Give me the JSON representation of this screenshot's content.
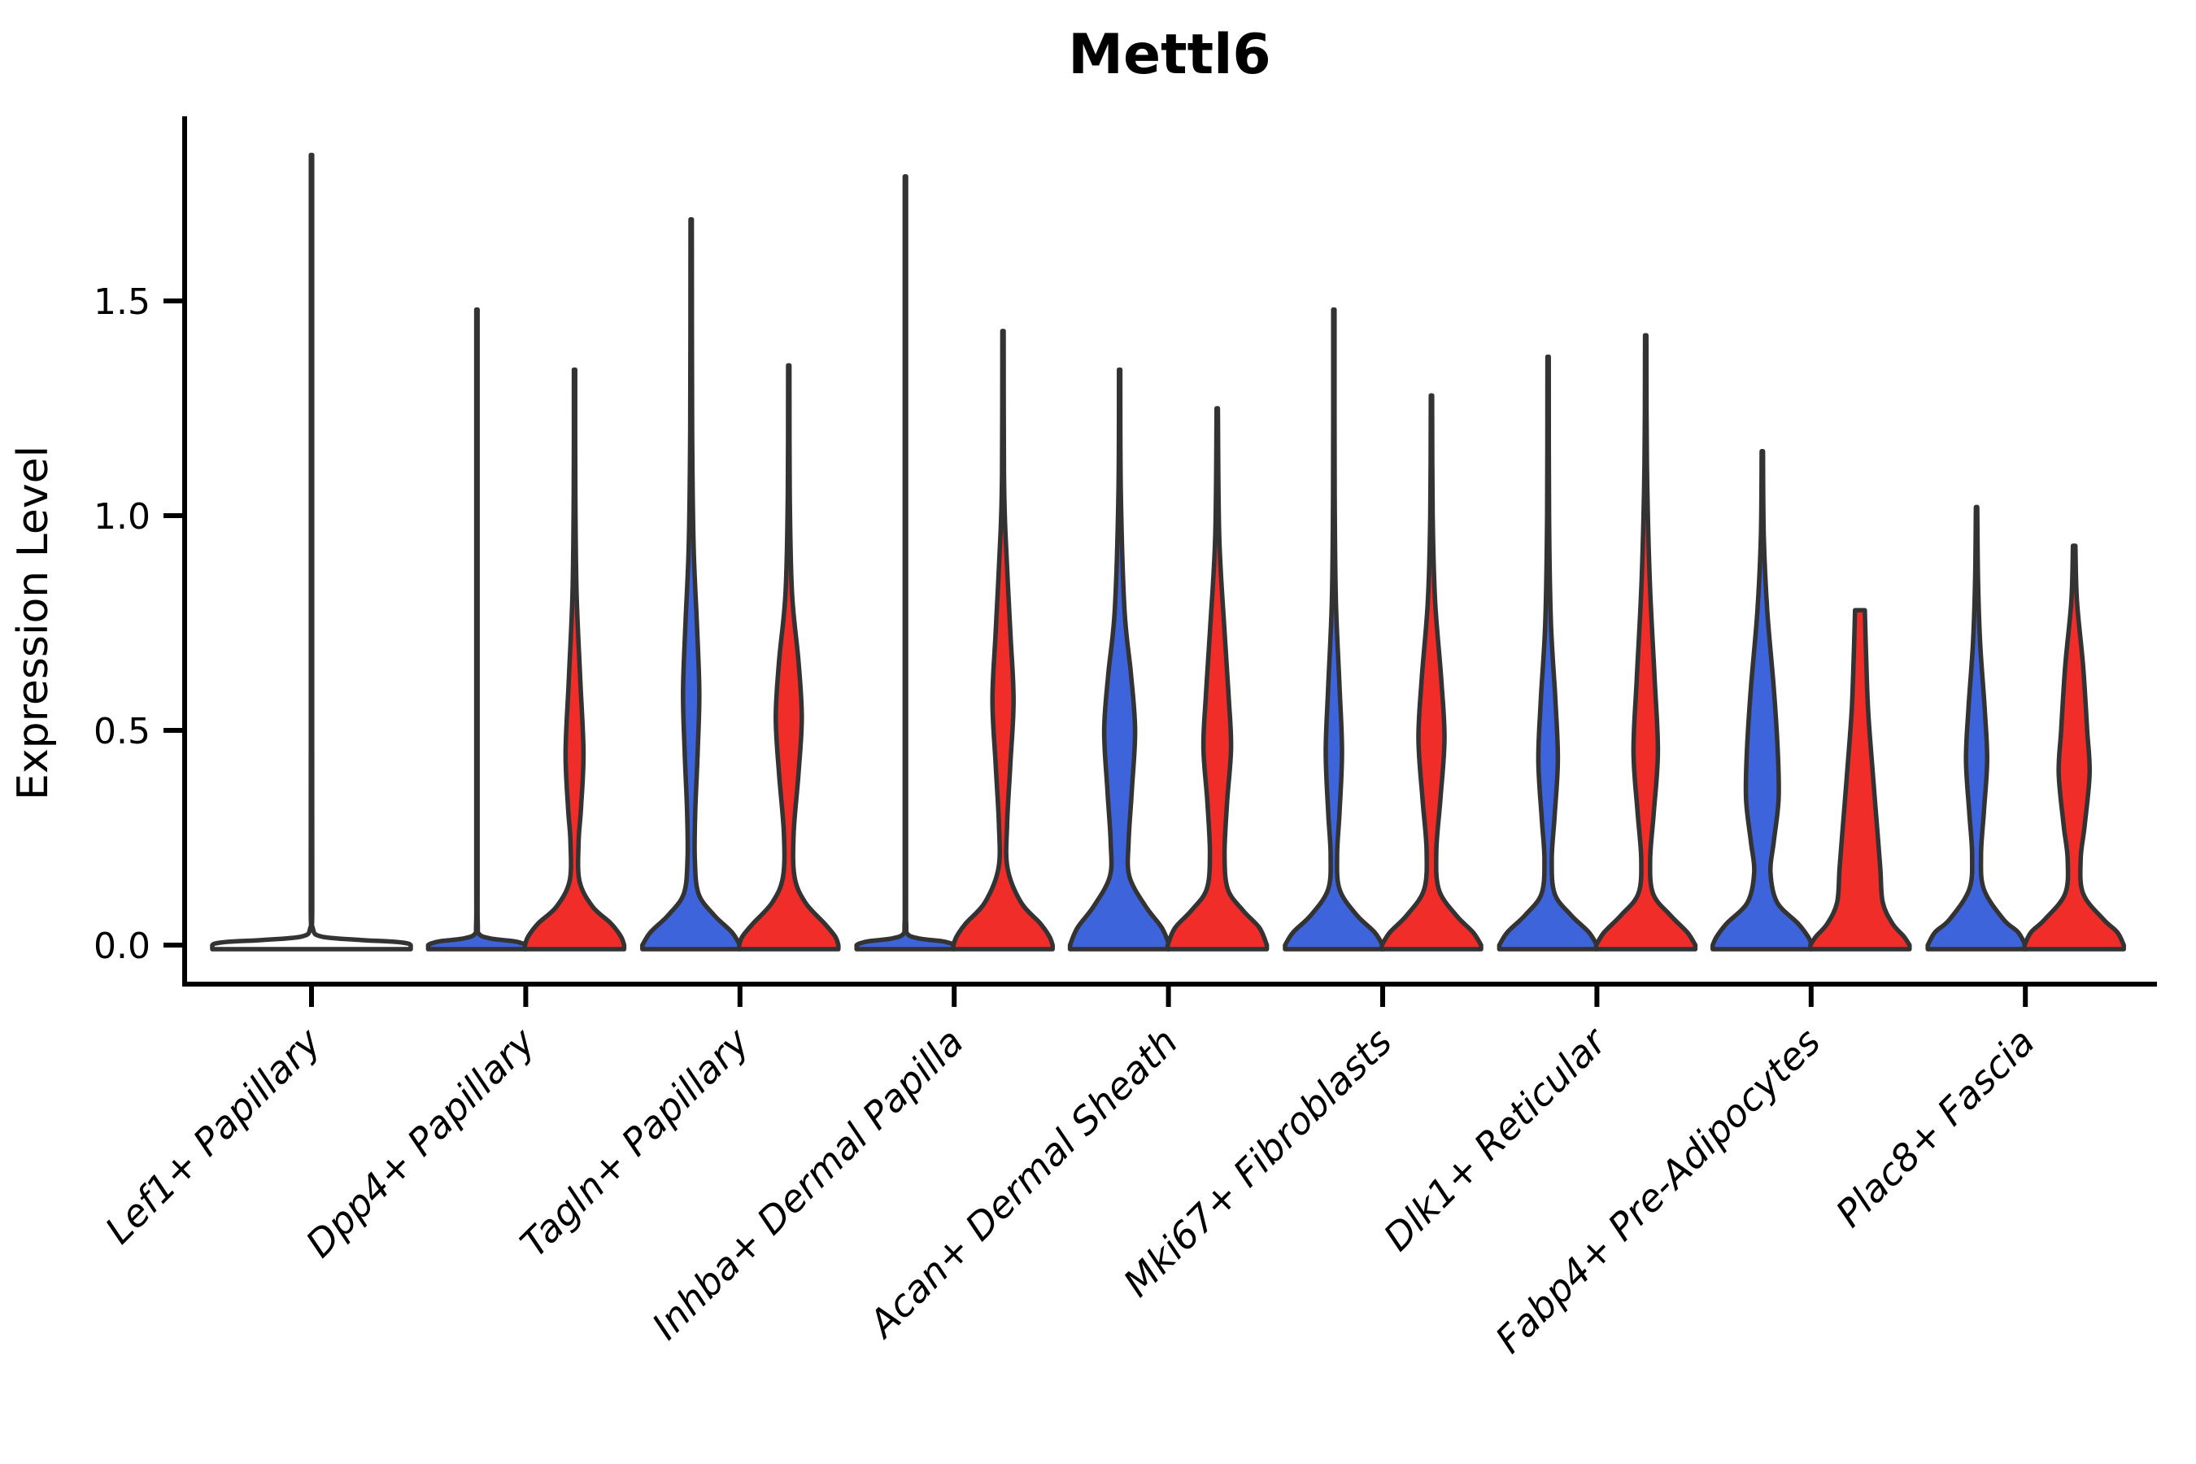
{
  "figure": {
    "title": "Mettl6",
    "ylabel": "Expression Level"
  },
  "colors": {
    "blue": "#3E64DC",
    "red": "#F02D28",
    "outline": "#333333",
    "axis": "#000000"
  },
  "chart_data": {
    "type": "violin",
    "title": "Mettl6",
    "xlabel": "",
    "ylabel": "Expression Level",
    "ylim": [
      -0.06,
      1.93
    ],
    "yticks": [
      "0.0",
      "0.5",
      "1.0",
      "1.5"
    ],
    "ytick_values": [
      0.0,
      0.5,
      1.0,
      1.5
    ],
    "grid": false,
    "legend_position": "none",
    "series": [
      {
        "key": "blue",
        "color": "#3E64DC",
        "position": "left"
      },
      {
        "key": "red",
        "color": "#F02D28",
        "position": "right"
      }
    ],
    "categories": [
      "Lef1+ Papillary",
      "Dpp4+ Papillary",
      "Tagln+ Papillary",
      "Inhba+ Dermal Papilla",
      "Acan+ Dermal Sheath",
      "Mki67+ Fibroblasts",
      "Dlk1+ Reticular",
      "Fabp4+ Pre-Adipocytes",
      "Plac8+ Fascia"
    ],
    "max_expression": {
      "blue": [
        1.84,
        1.48,
        1.69,
        1.79,
        1.34,
        1.48,
        1.37,
        1.15,
        1.02
      ],
      "red": [
        null,
        1.34,
        1.35,
        1.43,
        1.25,
        1.28,
        1.42,
        0.78,
        0.93
      ]
    },
    "note": "Lef1+ Papillary shows one flat full-width violin; Dpp4+ and Inhba+ blue violins are flat lines with tall spikes; most mass sits near 0 with a secondary bulge around 0.4-0.6.",
    "groups": [
      {
        "label": "Lef1+ Papillary",
        "violins": [
          {
            "series": "single",
            "max": 1.84,
            "profile": [
              [
                1.84,
                0.8
              ],
              [
                1.2,
                0.8
              ],
              [
                0.5,
                0.8
              ],
              [
                0.1,
                0.9
              ],
              [
                0.04,
                1.5
              ],
              [
                0.02,
                12
              ],
              [
                0.012,
                60
              ],
              [
                0.008,
                100
              ],
              [
                0.004,
                118
              ],
              [
                0,
                122
              ]
            ]
          }
        ]
      },
      {
        "label": "Dpp4+ Papillary",
        "violins": [
          {
            "series": "blue",
            "max": 1.48,
            "profile": [
              [
                1.48,
                0.8
              ],
              [
                0.6,
                0.8
              ],
              [
                0.15,
                0.8
              ],
              [
                0.05,
                1
              ],
              [
                0.025,
                3
              ],
              [
                0.015,
                18
              ],
              [
                0.009,
                45
              ],
              [
                0.004,
                56
              ],
              [
                0,
                60
              ]
            ]
          },
          {
            "series": "red",
            "max": 1.34,
            "profile": [
              [
                1.34,
                0.8
              ],
              [
                1.05,
                1
              ],
              [
                0.82,
                2.5
              ],
              [
                0.62,
                7
              ],
              [
                0.45,
                11
              ],
              [
                0.32,
                8
              ],
              [
                0.24,
                5
              ],
              [
                0.15,
                6
              ],
              [
                0.09,
                22
              ],
              [
                0.05,
                45
              ],
              [
                0.02,
                57
              ],
              [
                0,
                61
              ]
            ]
          }
        ]
      },
      {
        "label": "Tagln+ Papillary",
        "violins": [
          {
            "series": "blue",
            "max": 1.69,
            "profile": [
              [
                1.69,
                0.8
              ],
              [
                1.2,
                1.2
              ],
              [
                0.93,
                3
              ],
              [
                0.75,
                7
              ],
              [
                0.59,
                10
              ],
              [
                0.45,
                8
              ],
              [
                0.31,
                5
              ],
              [
                0.2,
                4.5
              ],
              [
                0.12,
                9
              ],
              [
                0.07,
                28
              ],
              [
                0.03,
                50
              ],
              [
                0,
                60
              ]
            ]
          },
          {
            "series": "red",
            "max": 1.35,
            "profile": [
              [
                1.35,
                0.8
              ],
              [
                1.05,
                1.2
              ],
              [
                0.82,
                4
              ],
              [
                0.66,
                12
              ],
              [
                0.53,
                16
              ],
              [
                0.4,
                12
              ],
              [
                0.26,
                6
              ],
              [
                0.16,
                7
              ],
              [
                0.1,
                20
              ],
              [
                0.05,
                44
              ],
              [
                0.02,
                57
              ],
              [
                0,
                61
              ]
            ]
          }
        ]
      },
      {
        "label": "Inhba+ Dermal Papilla",
        "violins": [
          {
            "series": "blue",
            "max": 1.79,
            "profile": [
              [
                1.79,
                0.8
              ],
              [
                0.8,
                0.8
              ],
              [
                0.15,
                0.8
              ],
              [
                0.05,
                1
              ],
              [
                0.025,
                3
              ],
              [
                0.015,
                18
              ],
              [
                0.009,
                45
              ],
              [
                0.004,
                56
              ],
              [
                0,
                60
              ]
            ]
          },
          {
            "series": "red",
            "max": 1.43,
            "profile": [
              [
                1.43,
                0.8
              ],
              [
                1.1,
                1.2
              ],
              [
                0.96,
                3
              ],
              [
                0.73,
                9
              ],
              [
                0.57,
                13
              ],
              [
                0.42,
                9
              ],
              [
                0.28,
                5
              ],
              [
                0.18,
                5.5
              ],
              [
                0.1,
                22
              ],
              [
                0.05,
                46
              ],
              [
                0.02,
                57
              ],
              [
                0,
                61
              ]
            ]
          }
        ]
      },
      {
        "label": "Acan+ Dermal Sheath",
        "violins": [
          {
            "series": "blue",
            "max": 1.34,
            "profile": [
              [
                1.34,
                0.8
              ],
              [
                1.05,
                1.5
              ],
              [
                0.78,
                6
              ],
              [
                0.63,
                14
              ],
              [
                0.5,
                19
              ],
              [
                0.36,
                15
              ],
              [
                0.24,
                11
              ],
              [
                0.16,
                12
              ],
              [
                0.09,
                32
              ],
              [
                0.04,
                52
              ],
              [
                0,
                61
              ]
            ]
          },
          {
            "series": "red",
            "max": 1.25,
            "profile": [
              [
                1.25,
                0.8
              ],
              [
                0.95,
                2.5
              ],
              [
                0.73,
                9
              ],
              [
                0.58,
                14
              ],
              [
                0.46,
                17
              ],
              [
                0.33,
                12
              ],
              [
                0.21,
                9
              ],
              [
                0.13,
                13
              ],
              [
                0.08,
                32
              ],
              [
                0.04,
                52
              ],
              [
                0,
                61
              ]
            ]
          }
        ]
      },
      {
        "label": "Mki67+ Fibroblasts",
        "violins": [
          {
            "series": "blue",
            "max": 1.48,
            "profile": [
              [
                1.48,
                0.8
              ],
              [
                1.05,
                1
              ],
              [
                0.8,
                2.5
              ],
              [
                0.6,
                7
              ],
              [
                0.45,
                10
              ],
              [
                0.31,
                7
              ],
              [
                0.21,
                4
              ],
              [
                0.13,
                7
              ],
              [
                0.07,
                28
              ],
              [
                0.03,
                50
              ],
              [
                0,
                60
              ]
            ]
          },
          {
            "series": "red",
            "max": 1.28,
            "profile": [
              [
                1.28,
                0.8
              ],
              [
                1.0,
                1.5
              ],
              [
                0.8,
                4.5
              ],
              [
                0.62,
                12
              ],
              [
                0.48,
                16
              ],
              [
                0.34,
                11
              ],
              [
                0.22,
                6
              ],
              [
                0.13,
                9
              ],
              [
                0.07,
                30
              ],
              [
                0.03,
                51
              ],
              [
                0,
                61
              ]
            ]
          }
        ]
      },
      {
        "label": "Dlk1+ Reticular",
        "violins": [
          {
            "series": "blue",
            "max": 1.37,
            "profile": [
              [
                1.37,
                0.8
              ],
              [
                1.0,
                1.2
              ],
              [
                0.75,
                3.5
              ],
              [
                0.57,
                9
              ],
              [
                0.43,
                12
              ],
              [
                0.3,
                8
              ],
              [
                0.2,
                4.5
              ],
              [
                0.12,
                8
              ],
              [
                0.07,
                28
              ],
              [
                0.03,
                50
              ],
              [
                0,
                60
              ]
            ]
          },
          {
            "series": "red",
            "max": 1.42,
            "profile": [
              [
                1.42,
                0.8
              ],
              [
                1.12,
                1.5
              ],
              [
                0.85,
                5
              ],
              [
                0.62,
                11
              ],
              [
                0.45,
                15
              ],
              [
                0.31,
                10
              ],
              [
                0.2,
                5.5
              ],
              [
                0.12,
                9
              ],
              [
                0.07,
                30
              ],
              [
                0.03,
                51
              ],
              [
                0,
                61
              ]
            ]
          }
        ]
      },
      {
        "label": "Fabp4+ Pre-Adipocytes",
        "violins": [
          {
            "series": "blue",
            "max": 1.15,
            "profile": [
              [
                1.15,
                0.8
              ],
              [
                0.95,
                1.8
              ],
              [
                0.78,
                6
              ],
              [
                0.6,
                14
              ],
              [
                0.45,
                19
              ],
              [
                0.34,
                20
              ],
              [
                0.24,
                14
              ],
              [
                0.17,
                10
              ],
              [
                0.1,
                18
              ],
              [
                0.05,
                44
              ],
              [
                0.02,
                56
              ],
              [
                0,
                61
              ]
            ]
          },
          {
            "series": "red",
            "max": 0.78,
            "profile": [
              [
                0.78,
                6
              ],
              [
                0.68,
                7.5
              ],
              [
                0.55,
                10
              ],
              [
                0.42,
                15
              ],
              [
                0.3,
                20
              ],
              [
                0.18,
                25
              ],
              [
                0.1,
                28
              ],
              [
                0.05,
                40
              ],
              [
                0.02,
                54
              ],
              [
                0,
                61
              ]
            ]
          }
        ]
      },
      {
        "label": "Plac8+ Fascia",
        "violins": [
          {
            "series": "blue",
            "max": 1.02,
            "profile": [
              [
                1.02,
                0.8
              ],
              [
                0.85,
                1.8
              ],
              [
                0.7,
                4.5
              ],
              [
                0.55,
                10
              ],
              [
                0.43,
                13
              ],
              [
                0.31,
                9
              ],
              [
                0.21,
                5.5
              ],
              [
                0.13,
                9
              ],
              [
                0.06,
                33
              ],
              [
                0.03,
                51
              ],
              [
                0,
                60
              ]
            ]
          },
          {
            "series": "red",
            "max": 0.93,
            "profile": [
              [
                0.93,
                1.5
              ],
              [
                0.8,
                3.5
              ],
              [
                0.65,
                11
              ],
              [
                0.5,
                16
              ],
              [
                0.4,
                19
              ],
              [
                0.28,
                13
              ],
              [
                0.2,
                8
              ],
              [
                0.12,
                11
              ],
              [
                0.06,
                36
              ],
              [
                0.03,
                53
              ],
              [
                0,
                61
              ]
            ]
          }
        ]
      }
    ]
  }
}
